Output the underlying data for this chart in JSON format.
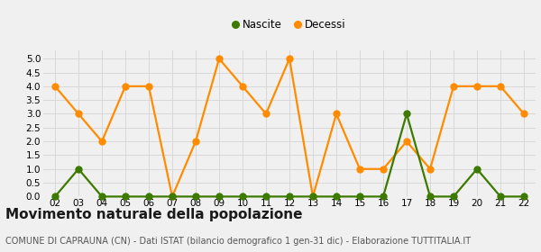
{
  "years": [
    "02",
    "03",
    "04",
    "05",
    "06",
    "07",
    "08",
    "09",
    "10",
    "11",
    "12",
    "13",
    "14",
    "15",
    "16",
    "17",
    "18",
    "19",
    "20",
    "21",
    "22"
  ],
  "nascite": [
    0,
    1,
    0,
    0,
    0,
    0,
    0,
    0,
    0,
    0,
    0,
    0,
    0,
    0,
    0,
    3,
    0,
    0,
    1,
    0,
    0
  ],
  "decessi": [
    4,
    3,
    2,
    4,
    4,
    0,
    2,
    5,
    4,
    3,
    5,
    0,
    3,
    1,
    1,
    2,
    1,
    4,
    4,
    4,
    3
  ],
  "nascite_color": "#3d7a00",
  "decessi_color": "#ff8c00",
  "background_color": "#f0f0f0",
  "grid_color": "#d8d8d8",
  "ylim": [
    0,
    5.3
  ],
  "yticks": [
    0,
    0.5,
    1.0,
    1.5,
    2.0,
    2.5,
    3.0,
    3.5,
    4.0,
    4.5,
    5.0
  ],
  "title": "Movimento naturale della popolazione",
  "subtitle": "COMUNE DI CAPRAUNA (CN) - Dati ISTAT (bilancio demografico 1 gen-31 dic) - Elaborazione TUTTITALIA.IT",
  "title_fontsize": 11,
  "subtitle_fontsize": 7,
  "marker_size": 5,
  "line_width": 1.6
}
